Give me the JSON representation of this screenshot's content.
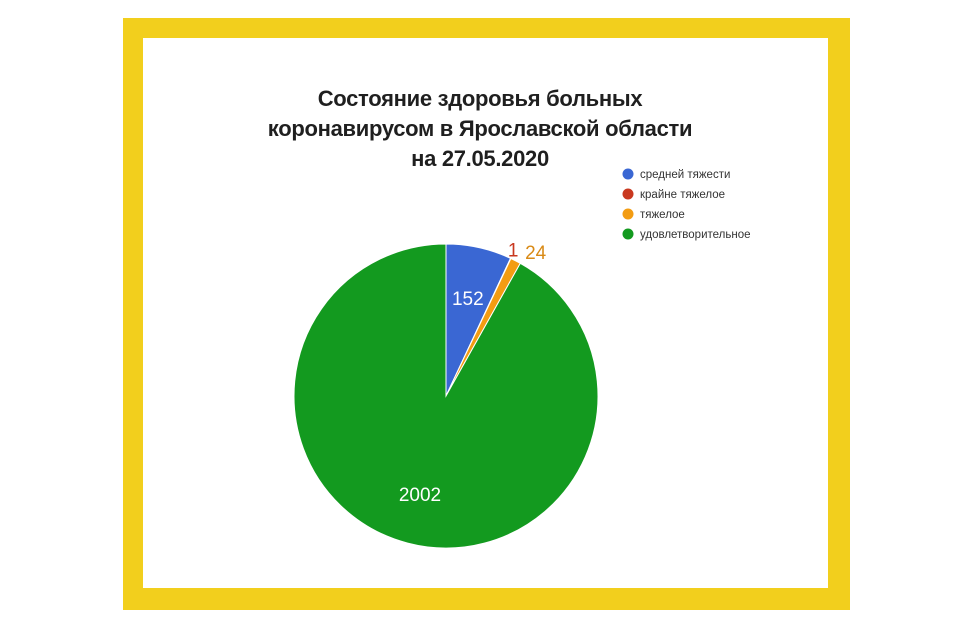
{
  "chart_data": {
    "type": "pie",
    "title": "Состояние здоровья больных коронавирусом в Ярославской области на 27.05.2020",
    "title_lines": [
      "Состояние здоровья больных",
      "коронавирусом в Ярославской области",
      "на 27.05.2020"
    ],
    "slices": [
      {
        "label": "средней тяжести",
        "value": 152,
        "color": "#3a67d3",
        "label_color": "#ffffff",
        "label_position": "inside"
      },
      {
        "label": "крайне тяжелое",
        "value": 1,
        "color": "#c9381f",
        "label_color": "#c9381f",
        "label_position": "outside"
      },
      {
        "label": "тяжелое",
        "value": 24,
        "color": "#f39c12",
        "label_color": "#d98a16",
        "label_position": "outside"
      },
      {
        "label": "удовлетворительное",
        "value": 2002,
        "color": "#139a1f",
        "label_color": "#ffffff",
        "label_position": "inside"
      }
    ],
    "legend_position": "top-right"
  },
  "colors": {
    "frame": "#f2cf1d",
    "background": "#ffffff",
    "title_text": "#1f1f1f"
  }
}
